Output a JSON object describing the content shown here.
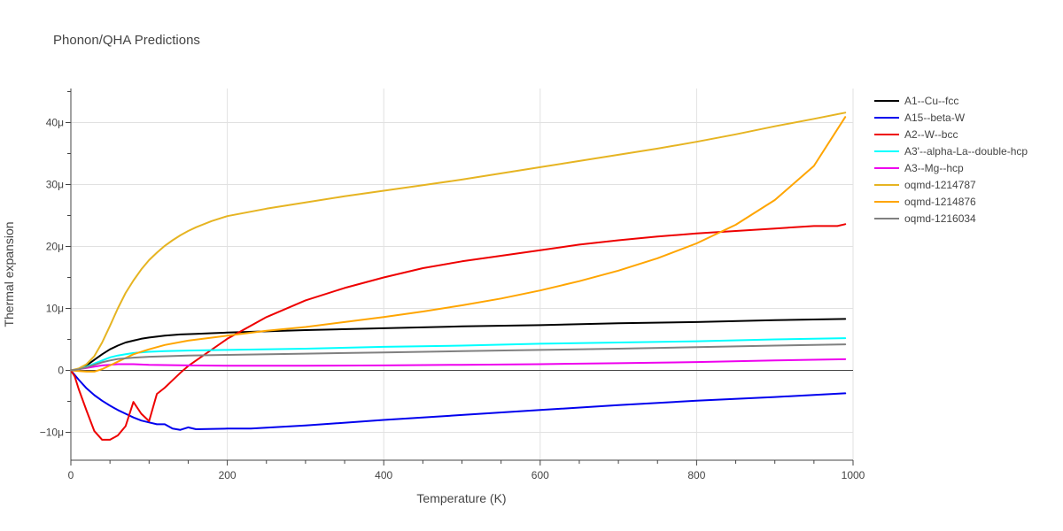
{
  "chart_data": {
    "type": "line",
    "title": "Phonon/QHA Predictions",
    "xlabel": "Temperature (K)",
    "ylabel": "Thermal expansion",
    "xlim": [
      0,
      1000
    ],
    "ylim": [
      -14.5,
      45.5
    ],
    "x_ticks": [
      0,
      200,
      400,
      600,
      800,
      1000
    ],
    "x_tick_labels": [
      "0",
      "200",
      "400",
      "600",
      "800",
      "1000"
    ],
    "y_ticks": [
      -10,
      0,
      10,
      20,
      30,
      40
    ],
    "y_tick_labels": [
      "−10μ",
      "0",
      "10μ",
      "20μ",
      "30μ",
      "40μ"
    ],
    "grid": true,
    "legend_position": "top-right",
    "series": [
      {
        "name": "A1--Cu--fcc",
        "color": "#000000",
        "x": [
          0,
          10,
          20,
          30,
          40,
          50,
          60,
          70,
          80,
          90,
          100,
          120,
          140,
          160,
          180,
          200,
          250,
          300,
          400,
          500,
          600,
          700,
          800,
          900,
          990
        ],
        "y": [
          0,
          0.2,
          0.8,
          1.7,
          2.6,
          3.4,
          4.0,
          4.5,
          4.8,
          5.1,
          5.3,
          5.6,
          5.8,
          5.9,
          6.0,
          6.1,
          6.3,
          6.5,
          6.8,
          7.1,
          7.3,
          7.6,
          7.8,
          8.1,
          8.3
        ]
      },
      {
        "name": "A15--beta-W",
        "color": "#0000ee",
        "x": [
          0,
          10,
          20,
          30,
          40,
          50,
          60,
          70,
          80,
          90,
          100,
          110,
          120,
          130,
          140,
          150,
          160,
          200,
          230,
          300,
          400,
          500,
          600,
          700,
          800,
          900,
          990
        ],
        "y": [
          0,
          -1.5,
          -2.9,
          -4.0,
          -4.9,
          -5.7,
          -6.4,
          -7.0,
          -7.6,
          -8.1,
          -8.4,
          -8.7,
          -8.7,
          -9.4,
          -9.6,
          -9.2,
          -9.5,
          -9.4,
          -9.4,
          -8.9,
          -8.0,
          -7.2,
          -6.4,
          -5.6,
          -4.9,
          -4.3,
          -3.7
        ]
      },
      {
        "name": "A2--W--bcc",
        "color": "#ee0000",
        "x": [
          0,
          5,
          10,
          20,
          30,
          40,
          50,
          60,
          70,
          80,
          90,
          100,
          110,
          120,
          130,
          140,
          150,
          200,
          250,
          300,
          350,
          400,
          450,
          500,
          550,
          600,
          650,
          700,
          750,
          800,
          850,
          900,
          950,
          980,
          990
        ],
        "y": [
          0,
          -1,
          -3,
          -6.5,
          -9.8,
          -11.2,
          -11.2,
          -10.5,
          -9.0,
          -5.1,
          -7.0,
          -8.2,
          -3.8,
          -2.8,
          -1.6,
          -0.4,
          0.7,
          5.1,
          8.6,
          11.3,
          13.3,
          15.0,
          16.5,
          17.6,
          18.5,
          19.4,
          20.3,
          21.0,
          21.6,
          22.1,
          22.5,
          22.9,
          23.3,
          23.3,
          23.6
        ]
      },
      {
        "name": "A3'--alpha-La--double-hcp",
        "color": "#00ffff",
        "x": [
          0,
          10,
          20,
          30,
          40,
          50,
          60,
          70,
          80,
          100,
          120,
          150,
          200,
          300,
          400,
          500,
          600,
          700,
          800,
          900,
          990
        ],
        "y": [
          0,
          0.2,
          0.6,
          1.1,
          1.6,
          2.1,
          2.4,
          2.6,
          2.8,
          3.0,
          3.1,
          3.2,
          3.3,
          3.5,
          3.8,
          4.0,
          4.3,
          4.5,
          4.7,
          5.0,
          5.2
        ]
      },
      {
        "name": "A3--Mg--hcp",
        "color": "#ee00ee",
        "x": [
          0,
          10,
          20,
          30,
          40,
          50,
          60,
          70,
          80,
          100,
          150,
          200,
          300,
          400,
          500,
          600,
          700,
          800,
          900,
          990
        ],
        "y": [
          0,
          0.2,
          0.4,
          0.6,
          0.8,
          0.9,
          1.0,
          1.0,
          1.0,
          0.9,
          0.8,
          0.75,
          0.75,
          0.8,
          0.9,
          1.0,
          1.15,
          1.35,
          1.6,
          1.8
        ]
      },
      {
        "name": "oqmd-1214787",
        "color": "#e6b422",
        "x": [
          0,
          10,
          20,
          30,
          40,
          50,
          60,
          70,
          80,
          90,
          100,
          110,
          120,
          130,
          140,
          150,
          160,
          180,
          200,
          250,
          300,
          350,
          400,
          450,
          500,
          550,
          600,
          650,
          700,
          750,
          800,
          850,
          900,
          950,
          990
        ],
        "y": [
          0,
          0.3,
          1.0,
          2.3,
          4.5,
          7.2,
          10.0,
          12.5,
          14.5,
          16.3,
          17.8,
          19.0,
          20.1,
          21.0,
          21.8,
          22.5,
          23.1,
          24.1,
          24.9,
          26.1,
          27.1,
          28.1,
          29.0,
          29.9,
          30.8,
          31.8,
          32.8,
          33.8,
          34.8,
          35.8,
          36.9,
          38.1,
          39.4,
          40.6,
          41.6
        ]
      },
      {
        "name": "oqmd-1214876",
        "color": "#ffa500",
        "x": [
          0,
          10,
          20,
          30,
          40,
          50,
          60,
          70,
          80,
          100,
          120,
          150,
          200,
          250,
          300,
          350,
          400,
          450,
          500,
          550,
          600,
          650,
          700,
          750,
          800,
          850,
          900,
          950,
          990
        ],
        "y": [
          0,
          -0.1,
          -0.2,
          -0.2,
          0.2,
          0.8,
          1.4,
          2.0,
          2.6,
          3.4,
          4.1,
          4.8,
          5.6,
          6.4,
          7.0,
          7.8,
          8.6,
          9.5,
          10.5,
          11.6,
          12.9,
          14.4,
          16.1,
          18.1,
          20.5,
          23.5,
          27.5,
          33.0,
          40.9
        ]
      },
      {
        "name": "oqmd-1216034",
        "color": "#808080",
        "x": [
          0,
          10,
          20,
          30,
          40,
          50,
          60,
          80,
          100,
          150,
          200,
          300,
          400,
          500,
          600,
          700,
          800,
          900,
          990
        ],
        "y": [
          0,
          0.15,
          0.5,
          0.9,
          1.3,
          1.6,
          1.85,
          2.05,
          2.2,
          2.4,
          2.5,
          2.7,
          2.9,
          3.1,
          3.3,
          3.5,
          3.75,
          4.0,
          4.2
        ]
      }
    ]
  }
}
